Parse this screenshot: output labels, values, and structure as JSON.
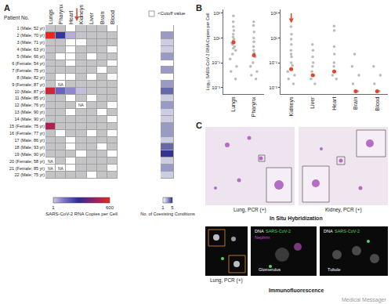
{
  "chart_data": [
    {
      "type": "heatmap",
      "title": "A",
      "row_header": "Patient No.",
      "x": [
        "Lungs",
        "Pharynx",
        "Heart",
        "Kidneys",
        "Liver",
        "Brain",
        "Blood"
      ],
      "y": [
        "1 (Male; 52 yr)",
        "2 (Male; 70 yr)",
        "3 (Male; 71 yr)",
        "4 (Male; 63 yr)",
        "5 (Male; 66 yr)",
        "6 (Female; 54 yr)",
        "7 (Female; 75 yr)",
        "8 (Male; 82 yr)",
        "9 (Female; 87 yr)",
        "10 (Male; 87 yr)",
        "11 (Male; 85 yr)",
        "12 (Male; 76 yr)",
        "13 (Male; 90 yr)",
        "14 (Male; 90 yr)",
        "15 (Female; 75 yr)",
        "16 (Female; 77 yr)",
        "17 (Male; 86 yr)",
        "18 (Male; 93 yr)",
        "19 (Male; 90 yr)",
        "20 (Female; 58 yr)",
        "21 (Female; 85 yr)",
        "22 (Male; 75 yr)"
      ],
      "cells": [
        [
          3,
          2,
          null,
          2,
          2,
          2,
          null
        ],
        [
          600,
          250,
          40,
          3,
          2,
          2,
          2
        ],
        [
          2,
          2,
          null,
          null,
          2,
          2,
          2
        ],
        [
          3,
          2,
          null,
          2,
          2,
          2,
          null
        ],
        [
          2,
          null,
          null,
          2,
          null,
          2,
          2
        ],
        [
          2,
          2,
          null,
          2,
          2,
          2,
          null
        ],
        [
          3,
          2,
          2,
          2,
          2,
          null,
          2
        ],
        [
          2,
          null,
          null,
          2,
          null,
          2,
          null
        ],
        [
          3,
          "NA",
          2,
          2,
          2,
          2,
          2
        ],
        [
          550,
          150,
          90,
          20,
          3,
          2,
          2
        ],
        [
          2,
          2,
          null,
          2,
          null,
          2,
          2
        ],
        [
          2,
          2,
          2,
          "NA",
          2,
          2,
          null
        ],
        [
          2,
          2,
          null,
          2,
          2,
          null,
          2
        ],
        [
          3,
          2,
          2,
          2,
          2,
          2,
          null
        ],
        [
          480,
          2,
          2,
          2,
          2,
          2,
          2
        ],
        [
          2,
          null,
          2,
          2,
          null,
          2,
          null
        ],
        [
          2,
          2,
          null,
          2,
          2,
          2,
          2
        ],
        [
          3,
          2,
          null,
          2,
          2,
          null,
          2
        ],
        [
          2,
          2,
          2,
          null,
          2,
          2,
          null
        ],
        [
          "NA",
          2,
          null,
          2,
          2,
          2,
          2
        ],
        [
          "NA",
          "NA",
          null,
          2,
          2,
          2,
          null
        ],
        [
          2,
          2,
          2,
          2,
          null,
          2,
          2
        ]
      ],
      "cutoff_label": "<Cutoff value",
      "colorbar": {
        "title": "SARS-CoV-2 RNA Copies per Cell",
        "range": [
          1,
          600
        ],
        "ticks": [
          1,
          600
        ]
      }
    },
    {
      "type": "heatmap",
      "values": [
        1,
        3,
        2,
        2,
        3,
        1,
        3,
        1,
        3,
        4,
        2,
        3,
        2,
        2,
        3,
        3,
        2,
        4,
        5,
        2,
        3,
        2
      ],
      "colorbar": {
        "title": "No. of Coexisting Conditions",
        "range": [
          1,
          5
        ],
        "ticks": [
          1,
          5
        ]
      }
    },
    {
      "type": "scatter",
      "title": "B",
      "y_label": "Log₁₀ SARS-CoV-2 RNA Copies per Cell",
      "categories": [
        "Lungs",
        "Pharynx"
      ],
      "values": [
        [
          600,
          200,
          80,
          40,
          20,
          12,
          8,
          6,
          5,
          4,
          3,
          2,
          1.5,
          1,
          0.5,
          0.2,
          0.05,
          0.02,
          0.005
        ],
        [
          200,
          100,
          30,
          10,
          5,
          2,
          1,
          0.6,
          0.4,
          0.3,
          0.1,
          0.05,
          0.02,
          0.01,
          0.005
        ]
      ],
      "medians": [
        4.5,
        0.4
      ],
      "color": "#bababa",
      "log": "y",
      "grid": false,
      "ylim": [
        0.0003,
        2000
      ],
      "yticks": [
        {
          "value": 1000,
          "label": "10³"
        },
        {
          "value": 10,
          "label": "10¹"
        },
        {
          "value": 0.1,
          "label": "10⁻¹"
        },
        {
          "value": 0.001,
          "label": "10⁻³"
        }
      ]
    },
    {
      "type": "scatter",
      "categories": [
        "Kidneys",
        "Liver",
        "Heart",
        "Brain",
        "Blood"
      ],
      "values": [
        [
          80,
          20,
          8,
          3,
          1,
          0.5,
          0.3,
          0.1,
          0.06,
          0.03,
          0.02,
          0.01,
          0.005,
          0.002
        ],
        [
          3,
          1,
          0.3,
          0.1,
          0.05,
          0.02,
          0.01,
          0.005,
          0.002
        ],
        [
          90,
          40,
          2,
          0.5,
          0.1,
          0.05,
          0.02,
          0.01,
          0.005
        ],
        [
          0.5,
          0.05,
          0.01,
          0.002,
          0.0005
        ],
        [
          0.05,
          0.01,
          0.002,
          0.0005
        ]
      ],
      "medians": [
        0.03,
        0.01,
        0.02,
        0.0005,
        0.0005
      ],
      "color": "#bababa",
      "log": "y",
      "grid": false,
      "ylim": [
        0.0003,
        2000
      ],
      "yticks": [
        {
          "value": 1000,
          "label": "10³"
        },
        {
          "value": 10,
          "label": "10¹"
        },
        {
          "value": 0.1,
          "label": "10⁻¹"
        },
        {
          "value": 0.001,
          "label": "10⁻³"
        }
      ]
    }
  ],
  "panel_c": {
    "label": "C",
    "ish": {
      "title": "In Situ Hybridization",
      "images": [
        "Lung, PCR (+)",
        "Kidney, PCR (+)"
      ]
    },
    "immunofluorescence": {
      "title": "Immunofluorescence",
      "images": [
        {
          "caption": "Lung, PCR (+)"
        },
        {
          "stains": [
            "DNA",
            "SARS-CoV-2",
            "Nephrin"
          ],
          "label": "Glomerulus"
        },
        {
          "stains": [
            "DNA",
            "SARS-CoV-2"
          ],
          "label": "Tubule"
        }
      ]
    }
  },
  "watermark": "Medical Messager"
}
